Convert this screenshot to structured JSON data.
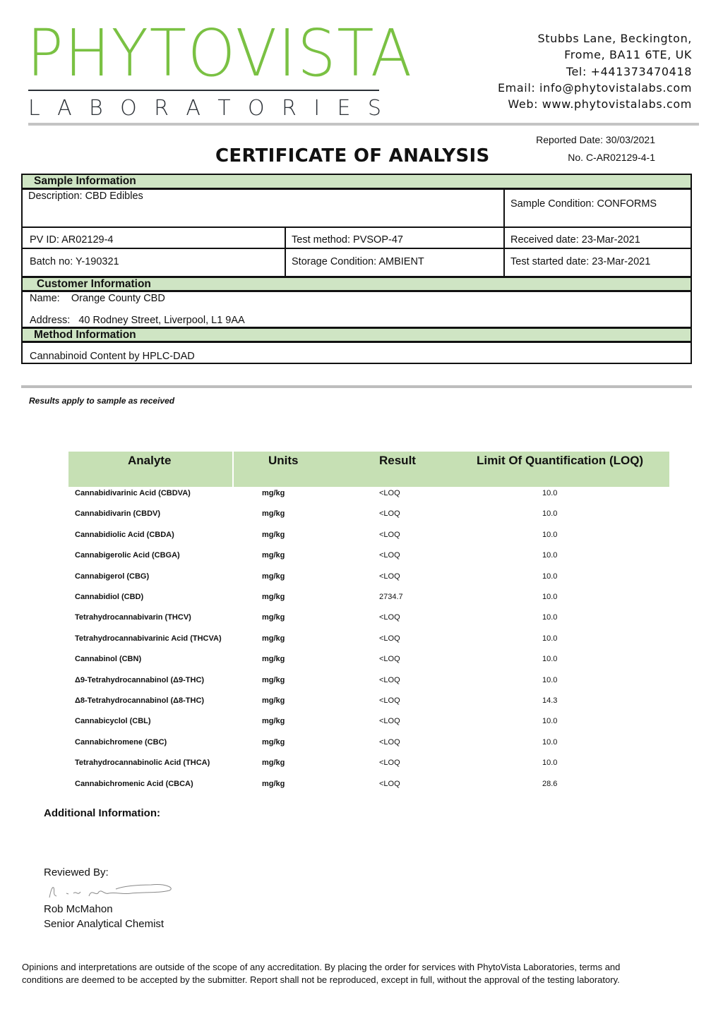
{
  "logo": {
    "name": "PHYTOVISTA",
    "sub": "LABORATORIES",
    "brand_color": "#7ac143"
  },
  "address": [
    "Stubbs Lane, Beckington,",
    "Frome, BA11 6TE, UK",
    "Tel: +441373470418",
    "Email: info@phytovistalabs.com",
    "Web: www.phytovistalabs.com"
  ],
  "report": {
    "reported_date": "Reported Date: 30/03/2021",
    "number": "No. C-AR02129-4-1",
    "title": "CERTIFICATE OF ANALYSIS"
  },
  "sample": {
    "header": "Sample Information",
    "description": "Description: CBD Edibles",
    "condition": "Sample Condition: CONFORMS",
    "pv_id": "PV ID: AR02129-4",
    "test_method": "Test method: PVSOP-47",
    "received": "Received date: 23-Mar-2021",
    "batch": "Batch no: Y-190321",
    "storage": "Storage Condition: AMBIENT",
    "started": "Test started date: 23-Mar-2021"
  },
  "customer": {
    "header": "Customer Information",
    "name_label": "Name:",
    "name": "Orange County CBD",
    "address_label": "Address:",
    "address": "40 Rodney Street, Liverpool, L1 9AA"
  },
  "method": {
    "header": "Method Information",
    "value": "Cannabinoid Content by HPLC-DAD"
  },
  "note": "Results apply to sample as received",
  "results": {
    "header_color": "#c6e0b4",
    "columns": [
      "Analyte",
      "Units",
      "Result",
      "Limit Of Quantification (LOQ)"
    ],
    "rows": [
      [
        "Cannabidivarinic Acid (CBDVA)",
        "mg/kg",
        "<LOQ",
        "10.0"
      ],
      [
        "Cannabidivarin (CBDV)",
        "mg/kg",
        "<LOQ",
        "10.0"
      ],
      [
        "Cannabidiolic Acid (CBDA)",
        "mg/kg",
        "<LOQ",
        "10.0"
      ],
      [
        "Cannabigerolic Acid (CBGA)",
        "mg/kg",
        "<LOQ",
        "10.0"
      ],
      [
        "Cannabigerol (CBG)",
        "mg/kg",
        "<LOQ",
        "10.0"
      ],
      [
        "Cannabidiol (CBD)",
        "mg/kg",
        "2734.7",
        "10.0"
      ],
      [
        "Tetrahydrocannabivarin (THCV)",
        "mg/kg",
        "<LOQ",
        "10.0"
      ],
      [
        "Tetrahydrocannabivarinic Acid (THCVA)",
        "mg/kg",
        "<LOQ",
        "10.0"
      ],
      [
        "Cannabinol (CBN)",
        "mg/kg",
        "<LOQ",
        "10.0"
      ],
      [
        "Δ9-Tetrahydrocannabinol (Δ9-THC)",
        "mg/kg",
        "<LOQ",
        "10.0"
      ],
      [
        "Δ8-Tetrahydrocannabinol (Δ8-THC)",
        "mg/kg",
        "<LOQ",
        "14.3"
      ],
      [
        "Cannabicyclol (CBL)",
        "mg/kg",
        "<LOQ",
        "10.0"
      ],
      [
        "Cannabichromene (CBC)",
        "mg/kg",
        "<LOQ",
        "10.0"
      ],
      [
        "Tetrahydrocannabinolic Acid (THCA)",
        "mg/kg",
        "<LOQ",
        "10.0"
      ],
      [
        "Cannabichromenic Acid (CBCA)",
        "mg/kg",
        "<LOQ",
        "28.6"
      ]
    ]
  },
  "additional": "Additional Information:",
  "review": {
    "label": "Reviewed By:",
    "name": "Rob McMahon",
    "role": "Senior Analytical Chemist"
  },
  "footer": "Opinions and interpretations are outside of the scope of any accreditation. By placing the order for services with PhytoVista Laboratories, terms and conditions are deemed to be accepted by the submitter. Report shall not be reproduced, except in full, without the approval of the testing laboratory."
}
